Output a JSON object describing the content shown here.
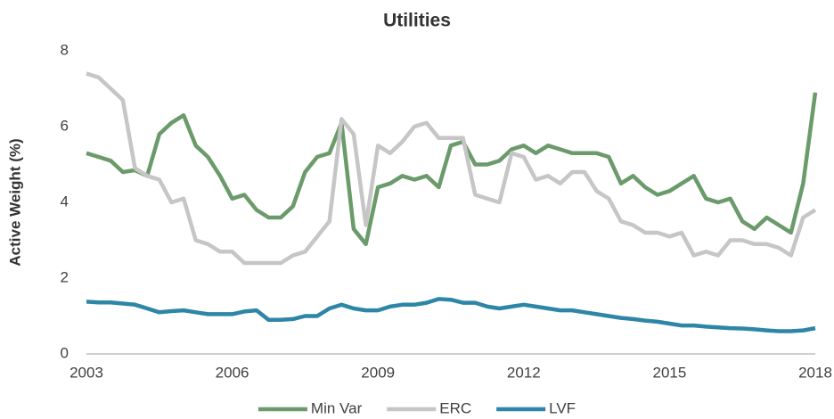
{
  "chart_data": {
    "type": "line",
    "title": "Utilities",
    "y_label": "Active Weight (%)",
    "x": [
      2003,
      2003.25,
      2003.5,
      2003.75,
      2004,
      2004.25,
      2004.5,
      2004.75,
      2005,
      2005.25,
      2005.5,
      2005.75,
      2006,
      2006.25,
      2006.5,
      2006.75,
      2007,
      2007.25,
      2007.5,
      2007.75,
      2008,
      2008.25,
      2008.5,
      2008.75,
      2009,
      2009.25,
      2009.5,
      2009.75,
      2010,
      2010.25,
      2010.5,
      2010.75,
      2011,
      2011.25,
      2011.5,
      2011.75,
      2012,
      2012.25,
      2012.5,
      2012.75,
      2013,
      2013.25,
      2013.5,
      2013.75,
      2014,
      2014.25,
      2014.5,
      2014.75,
      2015,
      2015.25,
      2015.5,
      2015.75,
      2016,
      2016.25,
      2016.5,
      2016.75,
      2017,
      2017.25,
      2017.5,
      2017.75,
      2018
    ],
    "series": [
      {
        "name": "Min Var",
        "color": "#6b9a6b",
        "values": [
          5.3,
          5.2,
          5.1,
          4.8,
          4.85,
          4.7,
          5.8,
          6.1,
          6.3,
          5.5,
          5.2,
          4.7,
          4.1,
          4.2,
          3.8,
          3.6,
          3.6,
          3.9,
          4.8,
          5.2,
          5.3,
          6.1,
          3.3,
          2.9,
          4.4,
          4.5,
          4.7,
          4.6,
          4.7,
          4.4,
          5.5,
          5.6,
          5.0,
          5.0,
          5.1,
          5.4,
          5.5,
          5.3,
          5.5,
          5.4,
          5.3,
          5.3,
          5.3,
          5.2,
          4.5,
          4.7,
          4.4,
          4.2,
          4.3,
          4.5,
          4.7,
          4.1,
          4.0,
          4.1,
          3.5,
          3.3,
          3.6,
          3.4,
          3.2,
          4.5,
          6.9
        ]
      },
      {
        "name": "ERC",
        "color": "#c6c6c6",
        "values": [
          7.4,
          7.3,
          7.0,
          6.7,
          4.9,
          4.7,
          4.6,
          4.0,
          4.1,
          3.0,
          2.9,
          2.7,
          2.7,
          2.4,
          2.4,
          2.4,
          2.4,
          2.6,
          2.7,
          3.1,
          3.5,
          6.2,
          5.8,
          3.4,
          5.5,
          5.3,
          5.6,
          6.0,
          6.1,
          5.7,
          5.7,
          5.7,
          4.2,
          4.1,
          4.0,
          5.3,
          5.2,
          4.6,
          4.7,
          4.5,
          4.8,
          4.8,
          4.3,
          4.1,
          3.5,
          3.4,
          3.2,
          3.2,
          3.1,
          3.2,
          2.6,
          2.7,
          2.6,
          3.0,
          3.0,
          2.9,
          2.9,
          2.8,
          2.6,
          3.6,
          3.8
        ]
      },
      {
        "name": "LVF",
        "color": "#2e86a6",
        "values": [
          1.38,
          1.36,
          1.36,
          1.33,
          1.3,
          1.2,
          1.1,
          1.13,
          1.15,
          1.1,
          1.05,
          1.05,
          1.05,
          1.12,
          1.15,
          0.9,
          0.9,
          0.92,
          1.0,
          1.0,
          1.2,
          1.3,
          1.2,
          1.15,
          1.15,
          1.25,
          1.3,
          1.3,
          1.35,
          1.45,
          1.43,
          1.35,
          1.35,
          1.25,
          1.2,
          1.25,
          1.3,
          1.25,
          1.2,
          1.15,
          1.15,
          1.1,
          1.05,
          1.0,
          0.95,
          0.92,
          0.88,
          0.85,
          0.8,
          0.75,
          0.75,
          0.72,
          0.7,
          0.68,
          0.67,
          0.65,
          0.62,
          0.6,
          0.6,
          0.62,
          0.68
        ]
      }
    ],
    "xlim": [
      2003,
      2018
    ],
    "xticks": [
      2003,
      2006,
      2009,
      2012,
      2015,
      2018
    ],
    "ylim": [
      0,
      8
    ],
    "yticks": [
      0,
      2,
      4,
      6,
      8
    ],
    "grid": false,
    "legend": "bottom"
  }
}
